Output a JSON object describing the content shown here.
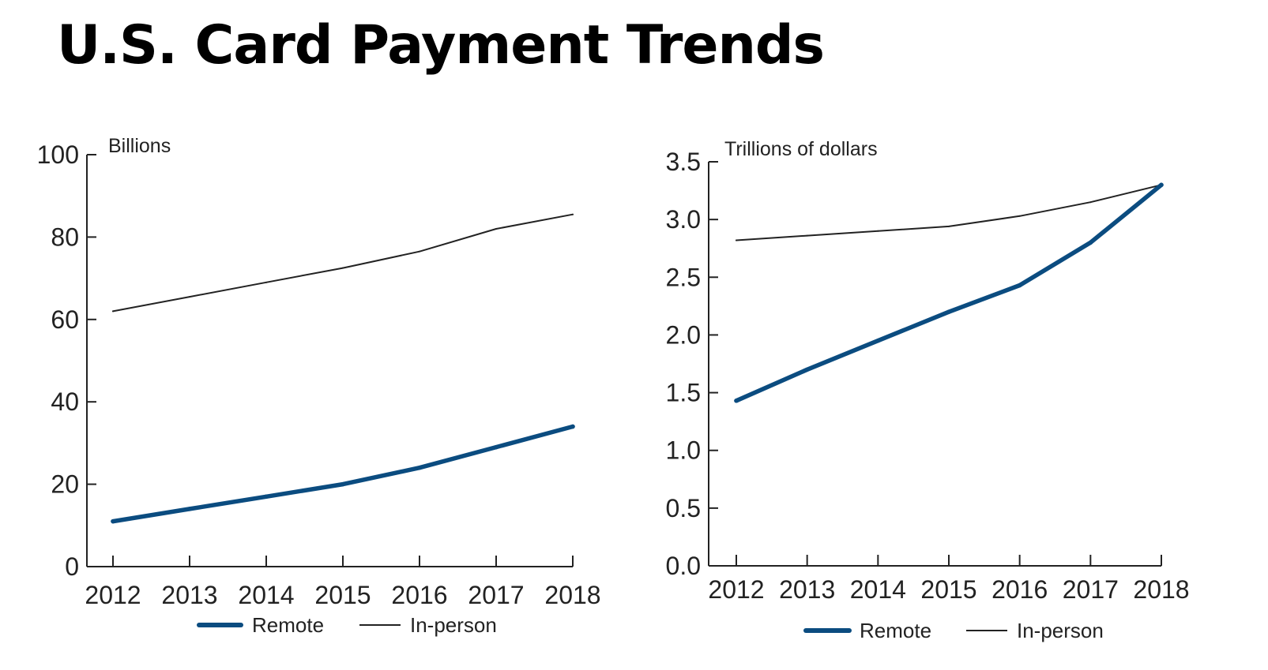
{
  "title": "U.S. Card Payment Trends",
  "colors": {
    "remote": "#0b4c80",
    "in_person": "#222222"
  },
  "chart_data": [
    {
      "type": "line",
      "ylabel": "Billions",
      "ylim": [
        0,
        100
      ],
      "yticks": [
        "0",
        "20",
        "40",
        "60",
        "80",
        "100"
      ],
      "ytick_values": [
        0,
        20,
        40,
        60,
        80,
        100
      ],
      "x": [
        "2012",
        "2013",
        "2014",
        "2015",
        "2016",
        "2017",
        "2018"
      ],
      "series": [
        {
          "name": "Remote",
          "values": [
            11,
            14,
            17,
            20,
            24,
            29,
            34
          ]
        },
        {
          "name": "In-person",
          "values": [
            62,
            65.5,
            69,
            72.5,
            76.5,
            82,
            85.5
          ]
        }
      ],
      "grid": false,
      "legend": "bottom"
    },
    {
      "type": "line",
      "ylabel": "Trillions of dollars",
      "ylim": [
        0,
        3.5
      ],
      "yticks": [
        "0.0",
        "0.5",
        "1.0",
        "1.5",
        "2.0",
        "2.5",
        "3.0",
        "3.5"
      ],
      "ytick_values": [
        0,
        0.5,
        1.0,
        1.5,
        2.0,
        2.5,
        3.0,
        3.5
      ],
      "x": [
        "2012",
        "2013",
        "2014",
        "2015",
        "2016",
        "2017",
        "2018"
      ],
      "series": [
        {
          "name": "Remote",
          "values": [
            1.43,
            1.7,
            1.95,
            2.2,
            2.43,
            2.8,
            3.3
          ]
        },
        {
          "name": "In-person",
          "values": [
            2.82,
            2.86,
            2.9,
            2.94,
            3.03,
            3.15,
            3.3
          ]
        }
      ],
      "grid": false,
      "legend": "bottom"
    }
  ]
}
